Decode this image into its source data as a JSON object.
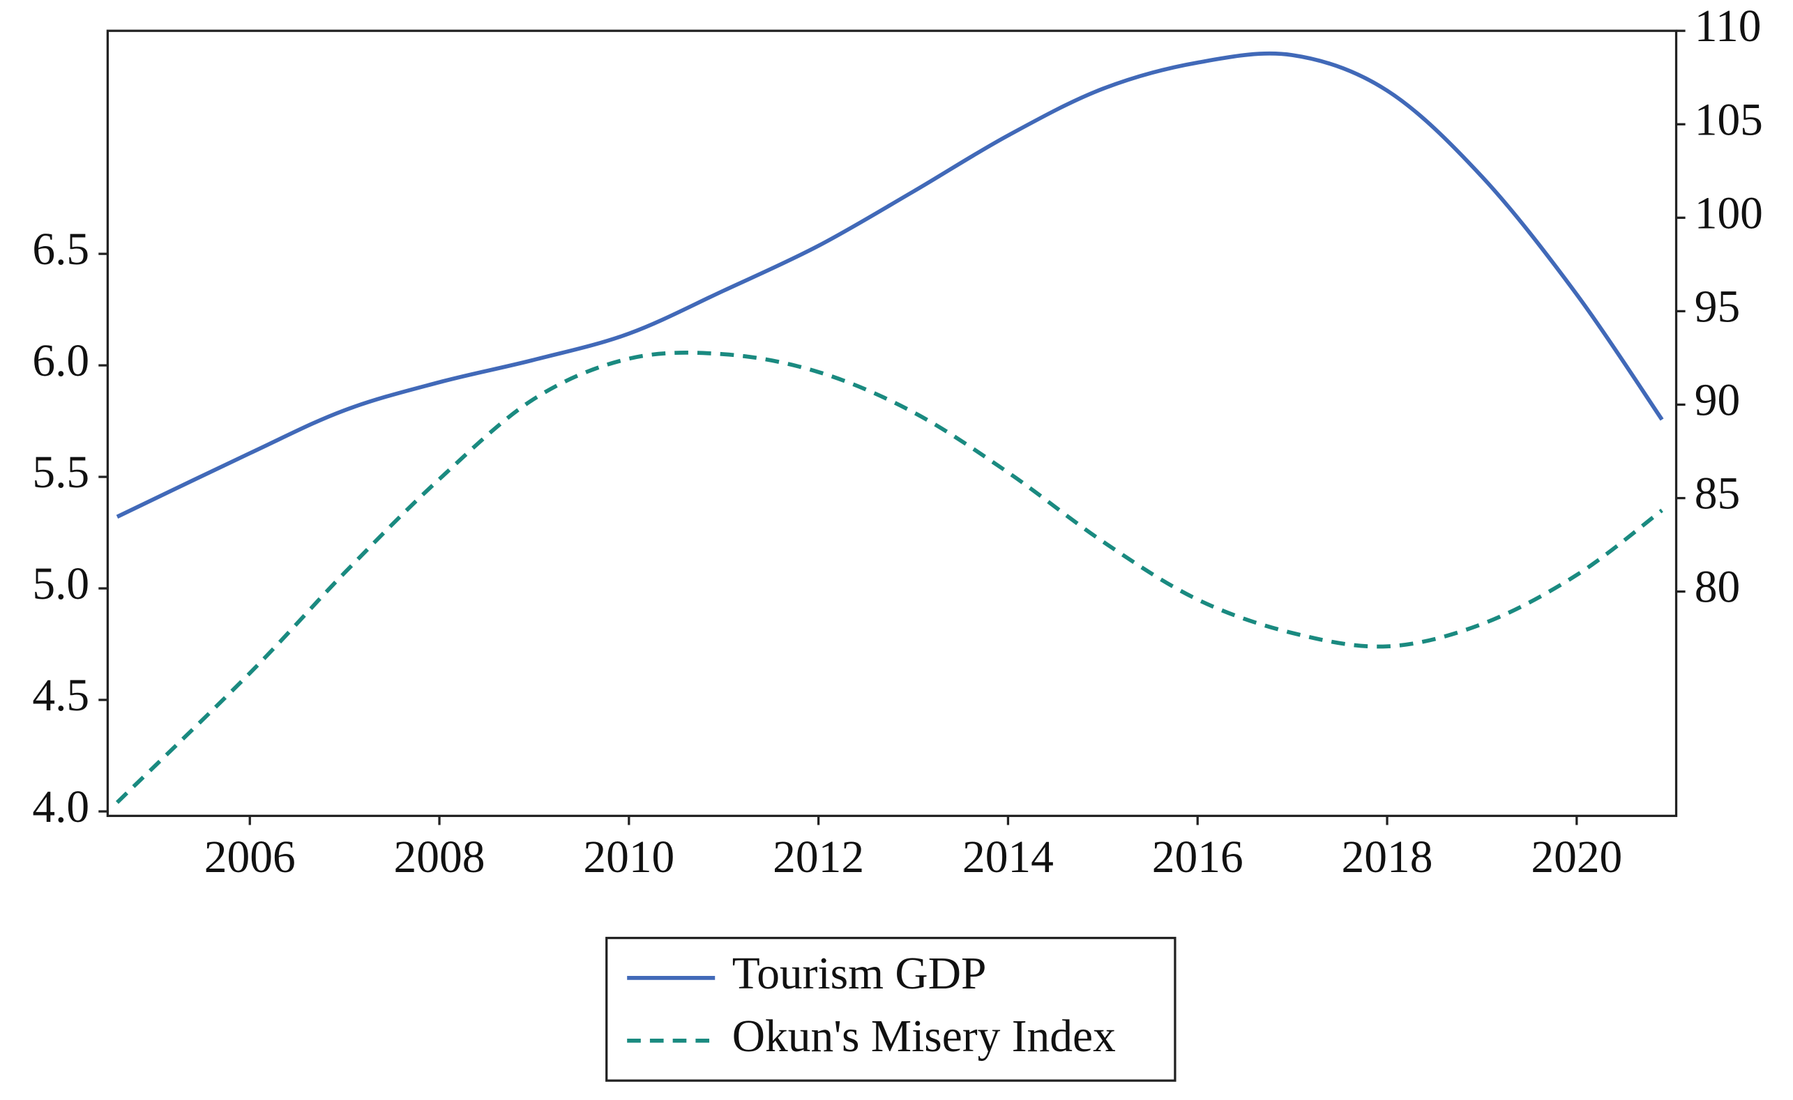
{
  "chart_data": {
    "type": "line",
    "x": [
      2004.6,
      2006,
      2007,
      2008,
      2009,
      2010,
      2011,
      2012,
      2013,
      2014,
      2015,
      2016,
      2017,
      2018,
      2019,
      2020,
      2020.9
    ],
    "series": [
      {
        "name": "Tourism GDP",
        "color": "#4169b8",
        "dash": "solid",
        "axis": "y2",
        "values": [
          84.0,
          87.4,
          89.7,
          91.2,
          92.4,
          93.8,
          96.1,
          98.5,
          101.4,
          104.4,
          106.9,
          108.3,
          108.7,
          106.8,
          102.2,
          95.9,
          89.2
        ]
      },
      {
        "name": "Okun's Misery Index",
        "color": "#1a8a80",
        "dash": "dashed",
        "axis": "y",
        "values": [
          4.04,
          4.62,
          5.07,
          5.49,
          5.85,
          6.03,
          6.05,
          5.97,
          5.79,
          5.52,
          5.21,
          4.95,
          4.8,
          4.74,
          4.84,
          5.06,
          5.35
        ]
      }
    ],
    "xlim": [
      2004.5,
      2021.05
    ],
    "xticks": [
      2006,
      2008,
      2010,
      2012,
      2014,
      2016,
      2018,
      2020
    ],
    "ylim": [
      3.98,
      7.5
    ],
    "yticks": [
      {
        "value": 4,
        "label": "4.0"
      },
      4.5,
      {
        "value": 5,
        "label": "5.0"
      },
      5.5,
      {
        "value": 6,
        "label": "6.0"
      },
      6.5
    ],
    "y2lim": [
      68,
      110
    ],
    "y2ticks": [
      80,
      85,
      90,
      95,
      100,
      105,
      110
    ],
    "legend": "bottom"
  }
}
